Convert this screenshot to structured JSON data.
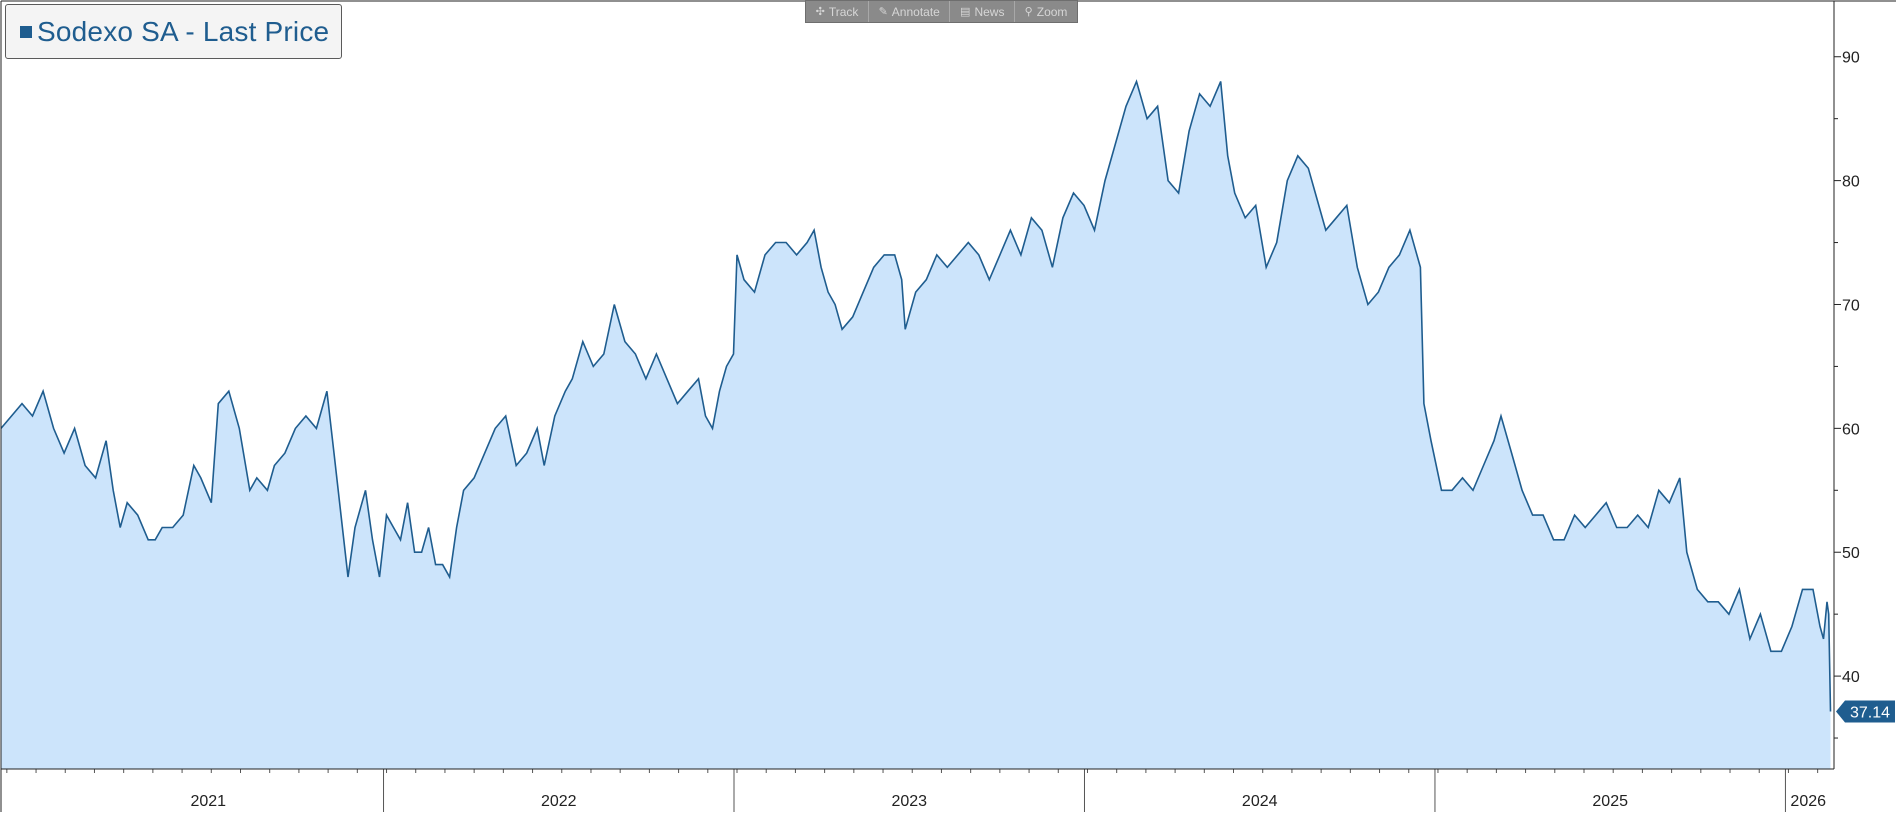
{
  "toolbar": {
    "items": [
      {
        "label": "Track",
        "icon": "crosshair-icon",
        "glyph": "✣"
      },
      {
        "label": "Annotate",
        "icon": "pencil-icon",
        "glyph": "✎"
      },
      {
        "label": "News",
        "icon": "news-icon",
        "glyph": "▤"
      },
      {
        "label": "Zoom",
        "icon": "magnifier-icon",
        "glyph": "⚲"
      }
    ]
  },
  "colors": {
    "line": "#1f5d8f",
    "fill": "#cce4fb",
    "axis": "#222222",
    "price_tag": "#1f5d8f",
    "price_tag_text": "#ffffff"
  },
  "chart_data": {
    "type": "area",
    "legend": "Sodexo SA - Last Price",
    "legend_placement": "top-left",
    "grid": false,
    "last_value_label": "37.14",
    "ylim": [
      32.5,
      94.5
    ],
    "xlim": [
      2020.9,
      2026.13
    ],
    "y_ticks": [
      40,
      50,
      60,
      70,
      80,
      90
    ],
    "x_ticks": [
      "2021",
      "2022",
      "2023",
      "2024",
      "2025",
      "2026"
    ],
    "x_tick_positions": [
      2021.0,
      2022.0,
      2023.0,
      2024.0,
      2025.0,
      2026.0
    ],
    "series": [
      {
        "name": "Sodexo SA - Last Price",
        "points": [
          [
            2020.9,
            60
          ],
          [
            2020.93,
            61
          ],
          [
            2020.96,
            62
          ],
          [
            2020.99,
            61
          ],
          [
            2021.02,
            63
          ],
          [
            2021.05,
            60
          ],
          [
            2021.08,
            58
          ],
          [
            2021.11,
            60
          ],
          [
            2021.14,
            57
          ],
          [
            2021.17,
            56
          ],
          [
            2021.2,
            59
          ],
          [
            2021.22,
            55
          ],
          [
            2021.24,
            52
          ],
          [
            2021.26,
            54
          ],
          [
            2021.29,
            53
          ],
          [
            2021.32,
            51
          ],
          [
            2021.34,
            51
          ],
          [
            2021.36,
            52
          ],
          [
            2021.39,
            52
          ],
          [
            2021.42,
            53
          ],
          [
            2021.45,
            57
          ],
          [
            2021.47,
            56
          ],
          [
            2021.5,
            54
          ],
          [
            2021.52,
            62
          ],
          [
            2021.55,
            63
          ],
          [
            2021.58,
            60
          ],
          [
            2021.61,
            55
          ],
          [
            2021.63,
            56
          ],
          [
            2021.66,
            55
          ],
          [
            2021.68,
            57
          ],
          [
            2021.71,
            58
          ],
          [
            2021.74,
            60
          ],
          [
            2021.77,
            61
          ],
          [
            2021.8,
            60
          ],
          [
            2021.83,
            63
          ],
          [
            2021.85,
            58
          ],
          [
            2021.87,
            53
          ],
          [
            2021.89,
            48
          ],
          [
            2021.91,
            52
          ],
          [
            2021.94,
            55
          ],
          [
            2021.96,
            51
          ],
          [
            2021.98,
            48
          ],
          [
            2022.0,
            53
          ],
          [
            2022.02,
            52
          ],
          [
            2022.04,
            51
          ],
          [
            2022.06,
            54
          ],
          [
            2022.08,
            50
          ],
          [
            2022.1,
            50
          ],
          [
            2022.12,
            52
          ],
          [
            2022.14,
            49
          ],
          [
            2022.16,
            49
          ],
          [
            2022.18,
            48
          ],
          [
            2022.2,
            52
          ],
          [
            2022.22,
            55
          ],
          [
            2022.25,
            56
          ],
          [
            2022.28,
            58
          ],
          [
            2022.31,
            60
          ],
          [
            2022.34,
            61
          ],
          [
            2022.37,
            57
          ],
          [
            2022.4,
            58
          ],
          [
            2022.43,
            60
          ],
          [
            2022.45,
            57
          ],
          [
            2022.48,
            61
          ],
          [
            2022.51,
            63
          ],
          [
            2022.53,
            64
          ],
          [
            2022.56,
            67
          ],
          [
            2022.59,
            65
          ],
          [
            2022.62,
            66
          ],
          [
            2022.65,
            70
          ],
          [
            2022.68,
            67
          ],
          [
            2022.71,
            66
          ],
          [
            2022.74,
            64
          ],
          [
            2022.77,
            66
          ],
          [
            2022.8,
            64
          ],
          [
            2022.83,
            62
          ],
          [
            2022.86,
            63
          ],
          [
            2022.89,
            64
          ],
          [
            2022.91,
            61
          ],
          [
            2022.93,
            60
          ],
          [
            2022.95,
            63
          ],
          [
            2022.97,
            65
          ],
          [
            2022.99,
            66
          ],
          [
            2023.0,
            74
          ],
          [
            2023.02,
            72
          ],
          [
            2023.05,
            71
          ],
          [
            2023.08,
            74
          ],
          [
            2023.11,
            75
          ],
          [
            2023.14,
            75
          ],
          [
            2023.17,
            74
          ],
          [
            2023.2,
            75
          ],
          [
            2023.22,
            76
          ],
          [
            2023.24,
            73
          ],
          [
            2023.26,
            71
          ],
          [
            2023.28,
            70
          ],
          [
            2023.3,
            68
          ],
          [
            2023.33,
            69
          ],
          [
            2023.36,
            71
          ],
          [
            2023.39,
            73
          ],
          [
            2023.42,
            74
          ],
          [
            2023.45,
            74
          ],
          [
            2023.47,
            72
          ],
          [
            2023.48,
            68
          ],
          [
            2023.51,
            71
          ],
          [
            2023.54,
            72
          ],
          [
            2023.57,
            74
          ],
          [
            2023.6,
            73
          ],
          [
            2023.63,
            74
          ],
          [
            2023.66,
            75
          ],
          [
            2023.69,
            74
          ],
          [
            2023.72,
            72
          ],
          [
            2023.75,
            74
          ],
          [
            2023.78,
            76
          ],
          [
            2023.81,
            74
          ],
          [
            2023.84,
            77
          ],
          [
            2023.87,
            76
          ],
          [
            2023.9,
            73
          ],
          [
            2023.93,
            77
          ],
          [
            2023.96,
            79
          ],
          [
            2023.99,
            78
          ],
          [
            2024.02,
            76
          ],
          [
            2024.05,
            80
          ],
          [
            2024.08,
            83
          ],
          [
            2024.11,
            86
          ],
          [
            2024.14,
            88
          ],
          [
            2024.17,
            85
          ],
          [
            2024.2,
            86
          ],
          [
            2024.23,
            80
          ],
          [
            2024.26,
            79
          ],
          [
            2024.29,
            84
          ],
          [
            2024.32,
            87
          ],
          [
            2024.35,
            86
          ],
          [
            2024.38,
            88
          ],
          [
            2024.4,
            82
          ],
          [
            2024.42,
            79
          ],
          [
            2024.45,
            77
          ],
          [
            2024.48,
            78
          ],
          [
            2024.51,
            73
          ],
          [
            2024.54,
            75
          ],
          [
            2024.57,
            80
          ],
          [
            2024.6,
            82
          ],
          [
            2024.63,
            81
          ],
          [
            2024.65,
            79
          ],
          [
            2024.68,
            76
          ],
          [
            2024.71,
            77
          ],
          [
            2024.74,
            78
          ],
          [
            2024.77,
            73
          ],
          [
            2024.8,
            70
          ],
          [
            2024.83,
            71
          ],
          [
            2024.86,
            73
          ],
          [
            2024.89,
            74
          ],
          [
            2024.92,
            76
          ],
          [
            2024.95,
            73
          ],
          [
            2024.96,
            62
          ],
          [
            2024.98,
            59
          ],
          [
            2025.01,
            55
          ],
          [
            2025.04,
            55
          ],
          [
            2025.07,
            56
          ],
          [
            2025.1,
            55
          ],
          [
            2025.13,
            57
          ],
          [
            2025.16,
            59
          ],
          [
            2025.18,
            61
          ],
          [
            2025.21,
            58
          ],
          [
            2025.24,
            55
          ],
          [
            2025.27,
            53
          ],
          [
            2025.3,
            53
          ],
          [
            2025.33,
            51
          ],
          [
            2025.36,
            51
          ],
          [
            2025.39,
            53
          ],
          [
            2025.42,
            52
          ],
          [
            2025.45,
            53
          ],
          [
            2025.48,
            54
          ],
          [
            2025.51,
            52
          ],
          [
            2025.54,
            52
          ],
          [
            2025.57,
            53
          ],
          [
            2025.6,
            52
          ],
          [
            2025.63,
            55
          ],
          [
            2025.66,
            54
          ],
          [
            2025.69,
            56
          ],
          [
            2025.71,
            50
          ],
          [
            2025.74,
            47
          ],
          [
            2025.77,
            46
          ],
          [
            2025.8,
            46
          ],
          [
            2025.83,
            45
          ],
          [
            2025.86,
            47
          ],
          [
            2025.89,
            43
          ],
          [
            2025.92,
            45
          ],
          [
            2025.95,
            42
          ],
          [
            2025.98,
            42
          ],
          [
            2026.01,
            44
          ],
          [
            2026.04,
            47
          ],
          [
            2026.07,
            47
          ],
          [
            2026.09,
            44
          ],
          [
            2026.1,
            43
          ],
          [
            2026.11,
            46
          ],
          [
            2026.115,
            45
          ],
          [
            2026.12,
            37.14
          ]
        ]
      }
    ]
  }
}
